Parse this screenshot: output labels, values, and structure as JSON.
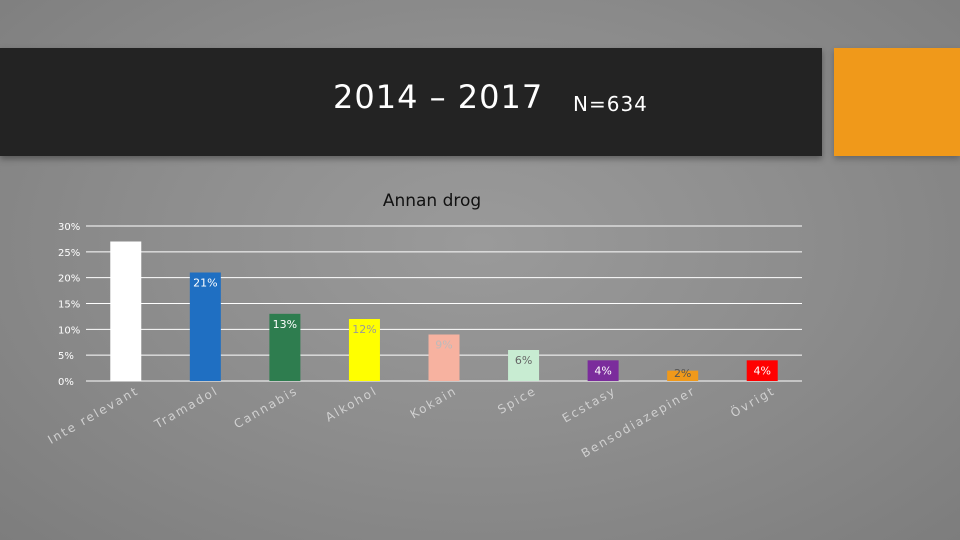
{
  "header": {
    "title": "2014 – 2017",
    "sample": "N=634"
  },
  "colors": {
    "header_bg": "#232323",
    "accent": "#f0991a",
    "grid": "#ffffff"
  },
  "chart_data": {
    "type": "bar",
    "title": "Annan drog",
    "xlabel": "",
    "ylabel": "",
    "ylim": [
      0,
      30
    ],
    "yticks": [
      0,
      5,
      10,
      15,
      20,
      25,
      30
    ],
    "ytick_labels": [
      "0%",
      "5%",
      "10%",
      "15%",
      "20%",
      "25%",
      "30%"
    ],
    "grid": true,
    "legend": "none",
    "categories": [
      "Inte relevant",
      "Tramadol",
      "Cannabis",
      "Alkohol",
      "Kokain",
      "Spice",
      "Ecstasy",
      "Bensodiazepiner",
      "Övrigt"
    ],
    "values": [
      27,
      21,
      13,
      12,
      9,
      6,
      4,
      2,
      4
    ],
    "data_labels": [
      "",
      "21%",
      "13%",
      "12%",
      "9%",
      "6%",
      "4%",
      "2%",
      "4%"
    ],
    "colors": [
      "#ffffff",
      "#1f6fc2",
      "#2e7d4f",
      "#ffff00",
      "#f7b2a0",
      "#c8ecd2",
      "#7b2c9c",
      "#f0991a",
      "#ff0000"
    ],
    "label_colors": [
      "#000000",
      "#ffffff",
      "#ffffff",
      "#999999",
      "#bbbbbb",
      "#666666",
      "#ffffff",
      "#555555",
      "#ffffff"
    ]
  }
}
